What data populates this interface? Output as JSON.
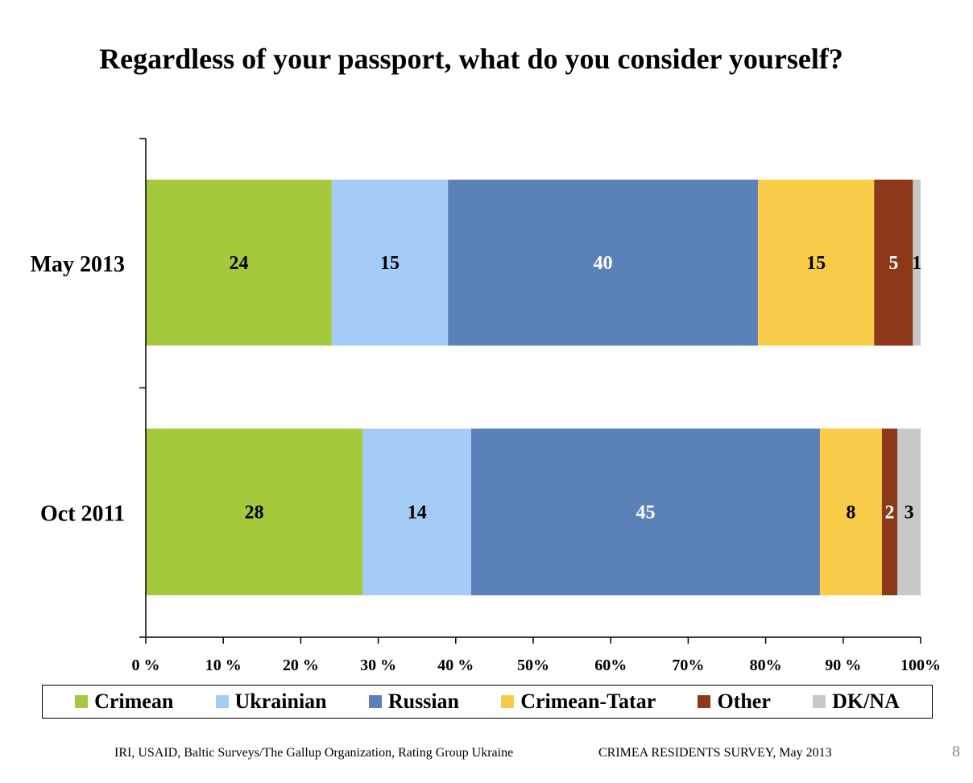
{
  "title": "Regardless of your passport, what do you consider yourself?",
  "chart_data": {
    "type": "bar",
    "orientation": "horizontal",
    "stacked": true,
    "categories": [
      "May 2013",
      "Oct 2011"
    ],
    "series": [
      {
        "name": "Crimean",
        "color": "#a4c93d",
        "values": [
          24,
          28
        ],
        "label_colors": [
          "#000000",
          "#000000"
        ]
      },
      {
        "name": "Ukrainian",
        "color": "#a5cbf7",
        "values": [
          15,
          14
        ],
        "label_colors": [
          "#000000",
          "#000000"
        ]
      },
      {
        "name": "Russian",
        "color": "#5a81b8",
        "values": [
          40,
          45
        ],
        "label_colors": [
          "#ffffff",
          "#ffffff"
        ]
      },
      {
        "name": "Crimean-Tatar",
        "color": "#f8cb48",
        "values": [
          15,
          8
        ],
        "label_colors": [
          "#000000",
          "#000000"
        ]
      },
      {
        "name": "Other",
        "color": "#8b3918",
        "values": [
          5,
          2
        ],
        "label_colors": [
          "#ffffff",
          "#ffffff"
        ]
      },
      {
        "name": "DK/NA",
        "color": "#c8c8c8",
        "values": [
          1,
          3
        ],
        "label_colors": [
          "#000000",
          "#000000"
        ]
      }
    ],
    "xlim": [
      0,
      100
    ],
    "x_ticks": [
      "0 %",
      "10 %",
      "20 %",
      "30 %",
      "40 %",
      "50%",
      "60%",
      "70%",
      "80%",
      "90 %",
      "100%"
    ],
    "grid": false,
    "legend_position": "bottom"
  },
  "footer": {
    "source": "IRI, USAID,  Baltic Surveys/The Gallup Organization, Rating Group Ukraine",
    "survey": "CRIMEA RESIDENTS SURVEY, May 2013",
    "page": "8"
  }
}
